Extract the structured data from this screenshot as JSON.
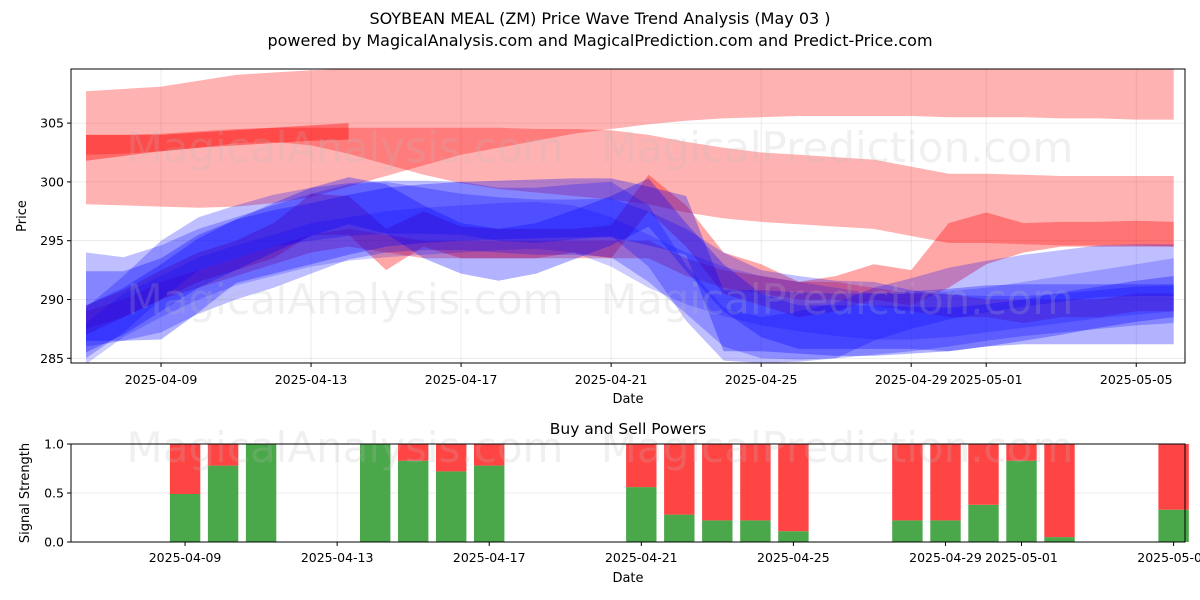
{
  "title": "SOYBEAN MEAL (ZM) Price Wave Trend Analysis (May 03 )",
  "subtitle": "powered by MagicalAnalysis.com and MagicalPrediction.com and Predict-Price.com",
  "watermarks": [
    "MagicalAnalysis.com",
    "MagicalPrediction.com"
  ],
  "colors": {
    "red": "#ff0000",
    "blue": "#0000ff",
    "buy": "#4aa84a",
    "sell": "#ff4444"
  },
  "chart_data": [
    {
      "type": "area",
      "title": "",
      "xlabel": "Date",
      "ylabel": "Price",
      "xlim": [
        "2025-04-06.6",
        "2025-05-06.3"
      ],
      "ylim": [
        284.6,
        309.6
      ],
      "x_ticks": [
        "2025-04-09",
        "2025-04-13",
        "2025-04-17",
        "2025-04-21",
        "2025-04-25",
        "2025-04-29",
        "2025-05-01",
        "2025-05-05"
      ],
      "y_ticks": [
        285,
        290,
        295,
        300,
        305
      ],
      "x_days": [
        0,
        1,
        2,
        3,
        4,
        5,
        6,
        7,
        8,
        9,
        10,
        11,
        12,
        13,
        14,
        15,
        16,
        17,
        18,
        19,
        20,
        21,
        22,
        23,
        24,
        25,
        26,
        27,
        28,
        29
      ],
      "x_labels_start": "2025-04-07",
      "red_bands": [
        {
          "name": "red band 1",
          "opacity": 0.3,
          "upper": [
            307.7,
            307.9,
            308.1,
            308.6,
            309.1,
            309.3,
            309.5,
            309.6,
            309.6,
            309.6,
            309.6,
            309.6,
            309.6,
            309.6,
            309.6,
            309.6,
            309.6,
            309.6,
            309.6,
            309.6,
            309.6,
            309.6,
            309.6,
            309.6,
            309.6,
            309.6,
            309.6,
            309.6,
            309.6,
            309.6
          ],
          "lower": [
            298.1,
            298.0,
            297.9,
            297.8,
            297.9,
            298.2,
            298.7,
            299.6,
            300.5,
            301.4,
            302.3,
            302.9,
            303.5,
            304.1,
            304.5,
            304.9,
            305.2,
            305.4,
            305.5,
            305.6,
            305.6,
            305.6,
            305.6,
            305.5,
            305.5,
            305.5,
            305.4,
            305.4,
            305.3,
            305.3
          ]
        },
        {
          "name": "red band 2",
          "opacity": 0.3,
          "upper": [
            304.0,
            304.0,
            304.1,
            304.3,
            304.5,
            304.6,
            304.6,
            304.6,
            304.6,
            304.6,
            304.6,
            304.6,
            304.5,
            304.5,
            304.4,
            304.0,
            303.4,
            302.9,
            302.5,
            302.3,
            302.1,
            301.9,
            301.3,
            300.7,
            300.7,
            300.6,
            300.5,
            300.5,
            300.5,
            300.5
          ],
          "lower": [
            302.3,
            302.4,
            302.6,
            302.9,
            303.3,
            303.4,
            303.1,
            302.4,
            301.5,
            300.6,
            299.9,
            299.4,
            299.1,
            298.8,
            298.5,
            298.1,
            297.4,
            296.9,
            296.6,
            296.4,
            296.2,
            296.0,
            295.4,
            294.8,
            294.8,
            294.7,
            294.6,
            294.6,
            294.6,
            294.5
          ]
        },
        {
          "name": "red band 3",
          "opacity": 0.4,
          "upper": [
            304.0,
            304.0,
            304.0,
            304.2,
            304.4,
            304.6,
            304.8,
            305.0
          ],
          "lower": [
            301.8,
            302.2,
            302.6,
            302.9,
            303.1,
            303.3,
            303.5,
            303.6
          ]
        },
        {
          "name": "red band 4",
          "opacity": 0.35,
          "upper": [
            289.5,
            290.8,
            292.5,
            294.0,
            295.0,
            296.5,
            299.0,
            298.8,
            296.0,
            297.5,
            296.2,
            296.0,
            296.0,
            296.0,
            296.3,
            300.6,
            298.0,
            294.0,
            293.0,
            291.5,
            292.0,
            293.0,
            292.5,
            296.5,
            297.4,
            296.5,
            296.6,
            296.6,
            296.7,
            296.6
          ],
          "lower": [
            287.0,
            288.5,
            290.0,
            291.5,
            292.5,
            293.5,
            295.5,
            295.5,
            292.5,
            294.5,
            293.5,
            293.5,
            293.5,
            294.0,
            293.5,
            297.5,
            294.5,
            290.5,
            289.5,
            288.5,
            289.0,
            290.0,
            289.5,
            291.0,
            293.0,
            294.0,
            294.5,
            294.5,
            294.5,
            294.5
          ]
        },
        {
          "name": "red band 5",
          "opacity": 0.3,
          "upper": [
            289.0,
            290.0,
            291.5,
            292.5,
            293.5,
            294.5,
            295.5,
            296.0,
            295.5,
            295.0,
            295.0,
            295.0,
            295.0,
            295.0,
            295.0,
            295.0,
            293.5,
            292.5,
            292.0,
            291.5,
            291.5,
            291.0,
            290.5,
            290.5,
            290.0,
            290.0,
            290.0,
            290.0,
            290.5,
            290.5
          ],
          "lower": [
            287.5,
            288.5,
            290.0,
            291.0,
            292.0,
            293.0,
            294.0,
            294.5,
            294.0,
            293.5,
            293.5,
            293.5,
            293.5,
            293.5,
            293.5,
            293.5,
            292.0,
            291.0,
            290.5,
            290.0,
            290.0,
            289.5,
            289.0,
            288.5,
            288.5,
            288.0,
            288.5,
            288.5,
            289.0,
            289.0
          ]
        }
      ],
      "blue_bands": [
        {
          "name": "blue band 1",
          "opacity": 0.3,
          "upper": [
            292.4,
            292.4,
            293.5,
            295.5,
            296.8,
            297.6,
            298.2,
            298.9,
            299.5,
            299.8,
            300.0,
            300.1,
            300.2,
            300.3,
            300.3,
            299.6,
            298.8,
            290.8,
            290.8,
            290.6,
            290.5,
            290.5,
            290.7,
            290.9,
            291.2,
            291.3,
            291.3,
            291.3,
            291.3,
            291.3
          ],
          "lower": [
            286.5,
            286.5,
            286.6,
            288.9,
            291.4,
            292.2,
            293.0,
            293.8,
            294.5,
            294.8,
            295.0,
            295.1,
            295.2,
            295.3,
            295.3,
            294.6,
            293.8,
            285.6,
            285.6,
            285.4,
            285.2,
            285.2,
            285.4,
            285.6,
            286.0,
            286.2,
            286.2,
            286.2,
            286.2,
            286.2
          ]
        },
        {
          "name": "blue band 2",
          "opacity": 0.25,
          "upper": [
            294.0,
            293.6,
            294.6,
            296.0,
            297.0,
            298.0,
            299.0,
            299.8,
            300.0,
            299.5,
            299.0,
            298.7,
            298.5,
            298.5,
            298.6,
            297.5,
            296.0,
            294.0,
            292.5,
            292.0,
            291.6,
            291.5,
            290.8,
            290.4,
            290.3,
            290.3,
            290.5,
            290.8,
            291.1,
            291.2
          ],
          "lower": [
            286.0,
            286.5,
            287.2,
            288.8,
            290.0,
            291.0,
            292.2,
            293.4,
            294.0,
            294.2,
            294.2,
            294.0,
            293.8,
            293.8,
            293.6,
            291.5,
            288.8,
            286.0,
            285.0,
            284.9,
            285.0,
            285.3,
            285.6,
            286.0,
            286.5,
            286.9,
            287.2,
            287.5,
            287.8,
            288.0
          ]
        },
        {
          "name": "blue band 3",
          "opacity": 0.3,
          "upper": [
            289.5,
            291.0,
            293.0,
            295.2,
            296.8,
            298.2,
            299.5,
            300.4,
            299.8,
            298.0,
            296.5,
            296.0,
            296.5,
            297.6,
            298.8,
            300.3,
            296.5,
            293.0,
            290.5,
            289.5,
            289.5,
            289.5,
            289.4,
            289.3,
            289.6,
            290.0,
            290.6,
            291.1,
            291.6,
            292.0
          ],
          "lower": [
            285.5,
            287.0,
            289.0,
            291.0,
            292.5,
            294.0,
            295.4,
            296.4,
            295.6,
            293.5,
            292.2,
            291.6,
            292.2,
            293.4,
            294.6,
            296.2,
            292.4,
            289.0,
            286.8,
            285.8,
            285.8,
            285.8,
            285.8,
            285.6,
            286.0,
            286.5,
            287.0,
            287.6,
            288.1,
            288.5
          ]
        },
        {
          "name": "blue band 4",
          "opacity": 0.25,
          "upper": [
            289.3,
            292.0,
            295.0,
            297.0,
            298.0,
            298.9,
            299.5,
            299.9,
            300.1,
            300.1,
            300.0,
            299.5,
            299.5,
            299.8,
            300.0,
            298.0,
            292.9,
            289.3,
            288.5,
            289.0,
            289.7,
            291.0,
            291.8,
            292.7,
            293.3,
            293.8,
            294.2,
            294.6,
            294.7,
            294.7
          ],
          "lower": [
            285.0,
            287.2,
            290.0,
            292.5,
            293.5,
            294.5,
            295.0,
            295.4,
            295.6,
            295.6,
            295.5,
            295.0,
            294.8,
            295.1,
            295.4,
            292.8,
            288.2,
            284.8,
            284.6,
            284.7,
            285.0,
            286.5,
            287.5,
            288.3,
            288.9,
            289.4,
            289.8,
            290.2,
            290.3,
            290.3
          ]
        },
        {
          "name": "blue band 5",
          "opacity": 0.2,
          "upper": [
            288.0,
            290.5,
            292.0,
            293.6,
            294.6,
            295.5,
            296.5,
            297.0,
            297.5,
            297.8,
            298.0,
            298.2,
            298.3,
            298.0,
            297.0,
            295.5,
            294.0,
            292.8,
            292.0,
            291.5,
            291.0,
            290.5,
            290.5,
            290.7,
            291.0,
            291.5,
            292.0,
            292.5,
            293.0,
            293.5
          ],
          "lower": [
            284.5,
            286.8,
            288.5,
            290.0,
            291.2,
            292.0,
            292.8,
            293.3,
            293.6,
            293.8,
            294.0,
            294.2,
            294.3,
            294.0,
            292.8,
            291.0,
            289.6,
            288.6,
            287.8,
            287.3,
            286.9,
            286.6,
            286.6,
            286.8,
            287.2,
            287.6,
            288.0,
            288.4,
            288.7,
            289.0
          ]
        }
      ]
    },
    {
      "type": "bar",
      "title": "Buy and Sell Powers",
      "xlabel": "Date",
      "ylabel": "Signal Strength",
      "ylim": [
        0,
        1
      ],
      "y_ticks": [
        "0.0",
        "0.5",
        "1.0"
      ],
      "x_ticks": [
        "2025-04-09",
        "2025-04-13",
        "2025-04-17",
        "2025-04-21",
        "2025-04-25",
        "2025-04-29",
        "2025-05-01",
        "2025-05-05"
      ],
      "categories": [
        "2025-04-09",
        "2025-04-10",
        "2025-04-11",
        "2025-04-14",
        "2025-04-15",
        "2025-04-16",
        "2025-04-17",
        "2025-04-21",
        "2025-04-22",
        "2025-04-23",
        "2025-04-24",
        "2025-04-25",
        "2025-04-28",
        "2025-04-29",
        "2025-04-30",
        "2025-05-01",
        "2025-05-02",
        "2025-05-05"
      ],
      "series": [
        {
          "name": "Buy",
          "values": [
            0.49,
            0.78,
            1.0,
            1.0,
            0.83,
            0.72,
            0.78,
            0.56,
            0.28,
            0.22,
            0.22,
            0.11,
            0.22,
            0.22,
            0.38,
            0.83,
            0.05,
            0.33
          ]
        },
        {
          "name": "Sell",
          "values": [
            0.51,
            0.22,
            0.0,
            0.0,
            0.17,
            0.28,
            0.22,
            0.44,
            0.72,
            0.78,
            0.78,
            0.89,
            0.78,
            0.78,
            0.62,
            0.17,
            0.95,
            0.67
          ]
        }
      ]
    }
  ]
}
